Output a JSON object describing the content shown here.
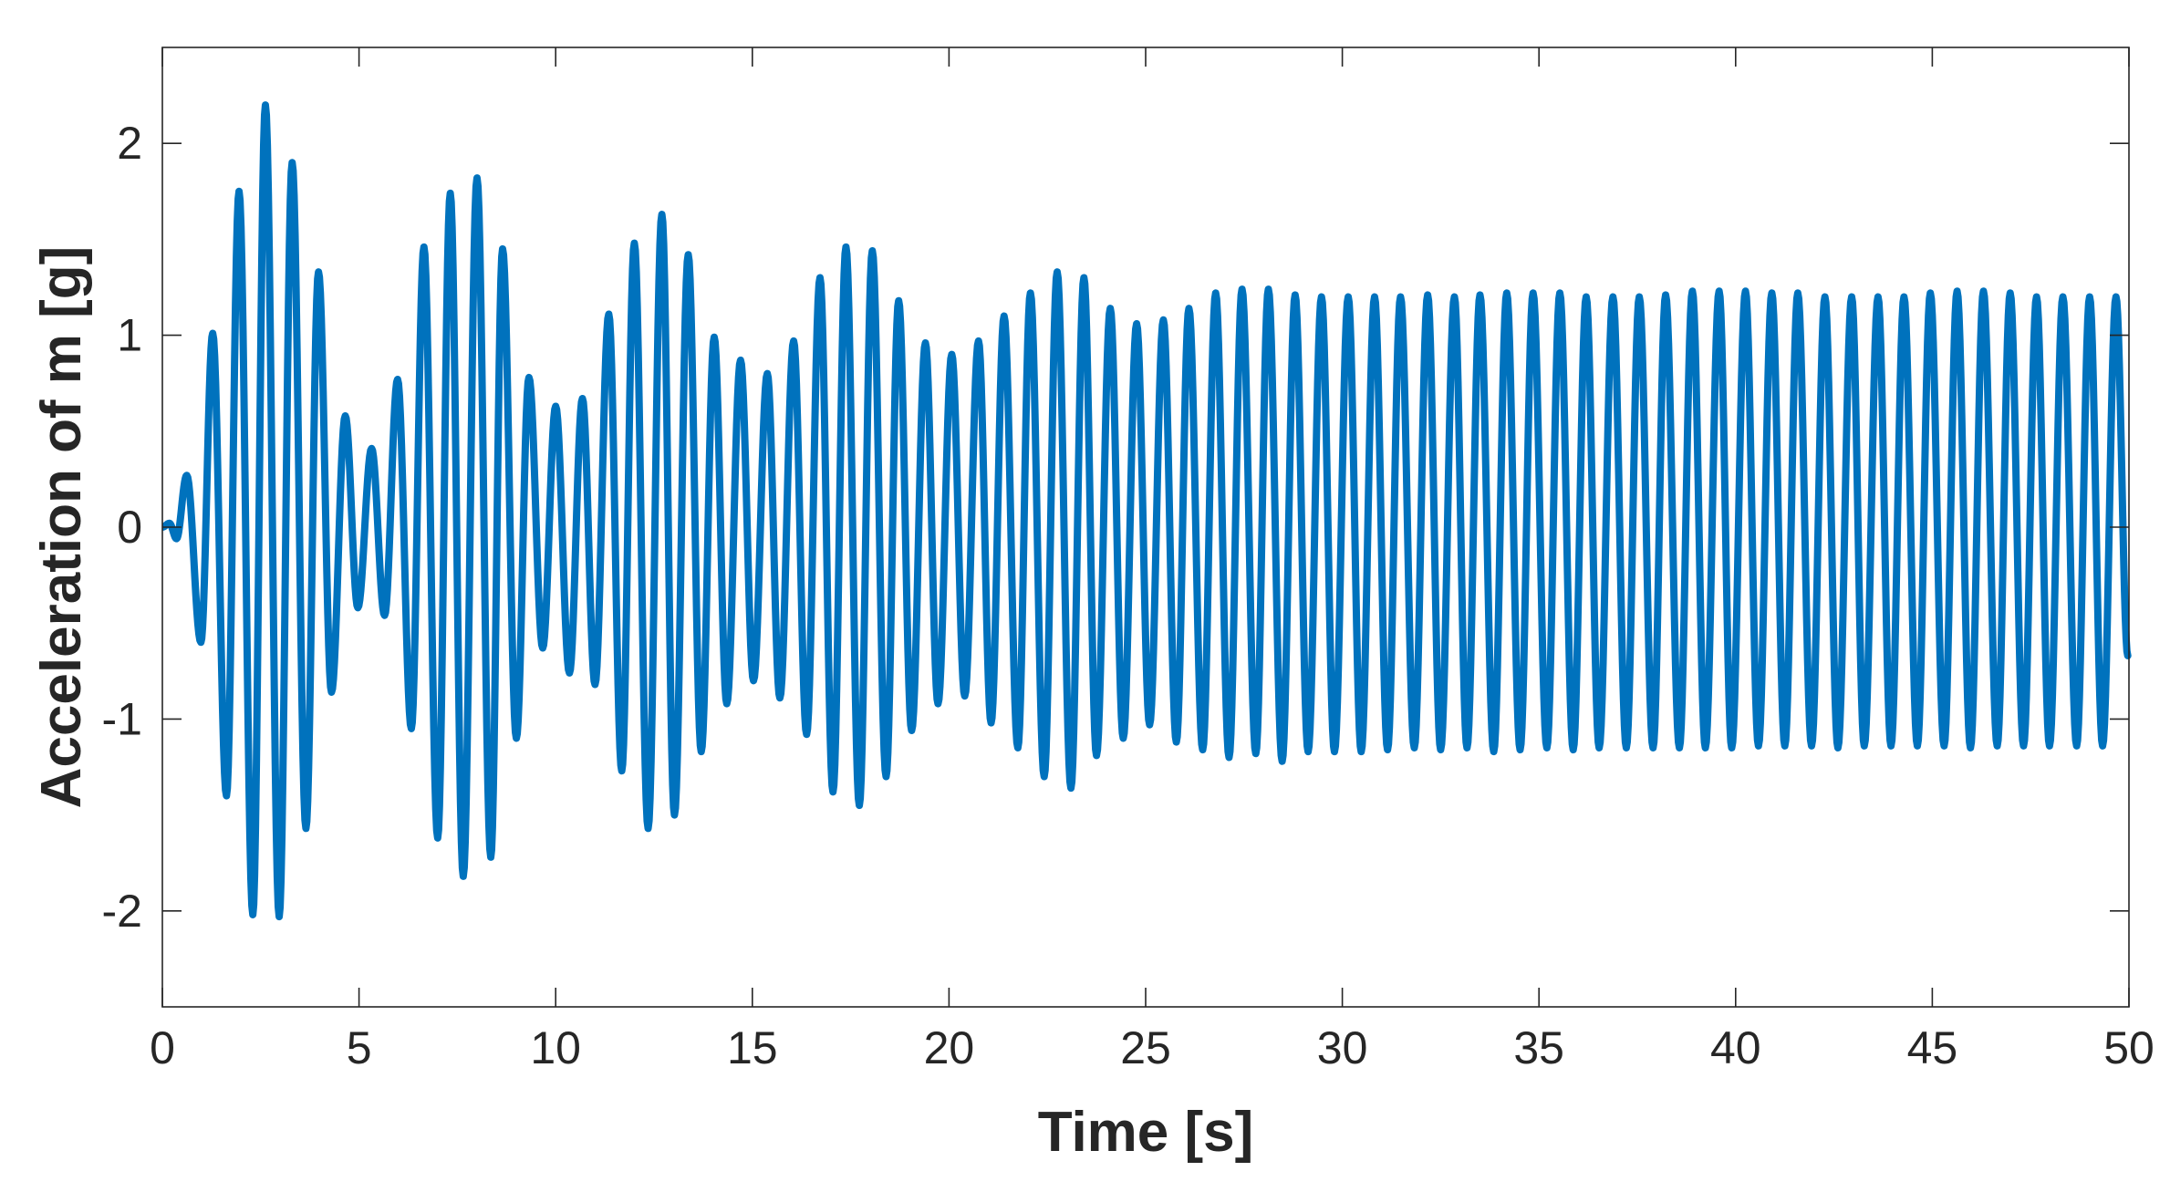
{
  "chart_data": {
    "type": "line",
    "title": "",
    "xlabel": "Time [s]",
    "ylabel": "Acceleration of m [g]",
    "xlim": [
      0,
      50
    ],
    "ylim": [
      -2.5,
      2.5
    ],
    "xticks": [
      0,
      5,
      10,
      15,
      20,
      25,
      30,
      35,
      40,
      45,
      50
    ],
    "yticks": [
      -2,
      -1,
      0,
      1,
      2
    ],
    "xtick_labels": [
      "0",
      "5",
      "10",
      "15",
      "20",
      "25",
      "30",
      "35",
      "40",
      "45",
      "50"
    ],
    "ytick_labels": [
      "-2",
      "-1",
      "0",
      "1",
      "2"
    ],
    "grid": false,
    "legend": "none",
    "series": [
      {
        "color": "#0072BD",
        "period_s": 0.68,
        "extrema": [
          [
            0,
            0.0
          ],
          [
            0.18,
            0.02
          ],
          [
            0.36,
            -0.06
          ],
          [
            0.62,
            0.27
          ],
          [
            0.98,
            -0.6
          ],
          [
            1.28,
            1.01
          ],
          [
            1.63,
            -1.4
          ],
          [
            1.95,
            1.75
          ],
          [
            2.3,
            -2.02
          ],
          [
            2.62,
            2.2
          ],
          [
            2.97,
            -2.03
          ],
          [
            3.3,
            1.9
          ],
          [
            3.65,
            -1.57
          ],
          [
            3.97,
            1.33
          ],
          [
            4.3,
            -0.86
          ],
          [
            4.65,
            0.58
          ],
          [
            4.97,
            -0.42
          ],
          [
            5.32,
            0.41
          ],
          [
            5.65,
            -0.46
          ],
          [
            5.98,
            0.77
          ],
          [
            6.33,
            -1.05
          ],
          [
            6.65,
            1.46
          ],
          [
            7.0,
            -1.62
          ],
          [
            7.32,
            1.74
          ],
          [
            7.65,
            -1.82
          ],
          [
            8.0,
            1.82
          ],
          [
            8.35,
            -1.72
          ],
          [
            8.65,
            1.45
          ],
          [
            9.0,
            -1.1
          ],
          [
            9.32,
            0.78
          ],
          [
            9.67,
            -0.63
          ],
          [
            10.0,
            0.63
          ],
          [
            10.35,
            -0.76
          ],
          [
            10.68,
            0.67
          ],
          [
            11.0,
            -0.82
          ],
          [
            11.35,
            1.11
          ],
          [
            11.68,
            -1.27
          ],
          [
            12.0,
            1.48
          ],
          [
            12.35,
            -1.57
          ],
          [
            12.7,
            1.63
          ],
          [
            13.02,
            -1.5
          ],
          [
            13.37,
            1.42
          ],
          [
            13.7,
            -1.17
          ],
          [
            14.03,
            0.99
          ],
          [
            14.35,
            -0.92
          ],
          [
            14.7,
            0.87
          ],
          [
            15.03,
            -0.8
          ],
          [
            15.38,
            0.8
          ],
          [
            15.7,
            -0.89
          ],
          [
            16.05,
            0.97
          ],
          [
            16.38,
            -1.08
          ],
          [
            16.72,
            1.3
          ],
          [
            17.05,
            -1.38
          ],
          [
            17.38,
            1.46
          ],
          [
            17.72,
            -1.45
          ],
          [
            18.05,
            1.44
          ],
          [
            18.4,
            -1.3
          ],
          [
            18.72,
            1.18
          ],
          [
            19.05,
            -1.06
          ],
          [
            19.4,
            0.96
          ],
          [
            19.72,
            -0.92
          ],
          [
            20.07,
            0.9
          ],
          [
            20.4,
            -0.88
          ],
          [
            20.75,
            0.97
          ],
          [
            21.07,
            -1.02
          ],
          [
            21.4,
            1.1
          ],
          [
            21.75,
            -1.15
          ],
          [
            22.07,
            1.22
          ],
          [
            22.42,
            -1.3
          ],
          [
            22.75,
            1.33
          ],
          [
            23.1,
            -1.36
          ],
          [
            23.43,
            1.3
          ],
          [
            23.75,
            -1.19
          ],
          [
            24.1,
            1.14
          ],
          [
            24.43,
            -1.1
          ],
          [
            24.77,
            1.06
          ],
          [
            25.1,
            -1.03
          ],
          [
            25.45,
            1.08
          ],
          [
            25.78,
            -1.12
          ],
          [
            26.1,
            1.14
          ],
          [
            26.45,
            -1.16
          ],
          [
            26.78,
            1.22
          ],
          [
            27.12,
            -1.2
          ],
          [
            27.45,
            1.24
          ],
          [
            27.8,
            -1.18
          ],
          [
            28.12,
            1.24
          ],
          [
            28.47,
            -1.22
          ],
          [
            28.8,
            1.21
          ],
          [
            29.13,
            -1.17
          ],
          [
            29.47,
            1.2
          ],
          [
            29.8,
            -1.17
          ],
          [
            30.15,
            1.2
          ],
          [
            30.48,
            -1.17
          ],
          [
            30.82,
            1.2
          ],
          [
            31.15,
            -1.16
          ],
          [
            31.48,
            1.2
          ],
          [
            31.83,
            -1.15
          ],
          [
            32.17,
            1.21
          ],
          [
            32.5,
            -1.16
          ],
          [
            32.85,
            1.2
          ],
          [
            33.17,
            -1.15
          ],
          [
            33.5,
            1.21
          ],
          [
            33.85,
            -1.17
          ],
          [
            34.18,
            1.22
          ],
          [
            34.52,
            -1.16
          ],
          [
            34.85,
            1.22
          ],
          [
            35.2,
            -1.15
          ],
          [
            35.53,
            1.22
          ],
          [
            35.87,
            -1.16
          ],
          [
            36.2,
            1.2
          ],
          [
            36.53,
            -1.15
          ],
          [
            36.88,
            1.2
          ],
          [
            37.22,
            -1.15
          ],
          [
            37.55,
            1.2
          ],
          [
            37.9,
            -1.15
          ],
          [
            38.22,
            1.21
          ],
          [
            38.57,
            -1.15
          ],
          [
            38.9,
            1.23
          ],
          [
            39.23,
            -1.15
          ],
          [
            39.58,
            1.23
          ],
          [
            39.9,
            -1.15
          ],
          [
            40.25,
            1.23
          ],
          [
            40.58,
            -1.14
          ],
          [
            40.92,
            1.22
          ],
          [
            41.25,
            -1.14
          ],
          [
            41.58,
            1.22
          ],
          [
            41.93,
            -1.14
          ],
          [
            42.27,
            1.2
          ],
          [
            42.6,
            -1.15
          ],
          [
            42.95,
            1.2
          ],
          [
            43.27,
            -1.14
          ],
          [
            43.62,
            1.2
          ],
          [
            43.95,
            -1.14
          ],
          [
            44.28,
            1.2
          ],
          [
            44.62,
            -1.14
          ],
          [
            44.95,
            1.22
          ],
          [
            45.3,
            -1.14
          ],
          [
            45.63,
            1.23
          ],
          [
            45.97,
            -1.15
          ],
          [
            46.3,
            1.23
          ],
          [
            46.65,
            -1.14
          ],
          [
            46.98,
            1.22
          ],
          [
            47.32,
            -1.14
          ],
          [
            47.65,
            1.2
          ],
          [
            47.98,
            -1.14
          ],
          [
            48.32,
            1.2
          ],
          [
            48.67,
            -1.14
          ],
          [
            49.0,
            1.2
          ],
          [
            49.33,
            -1.14
          ],
          [
            49.67,
            1.2
          ],
          [
            49.97,
            -0.67
          ]
        ]
      }
    ]
  }
}
